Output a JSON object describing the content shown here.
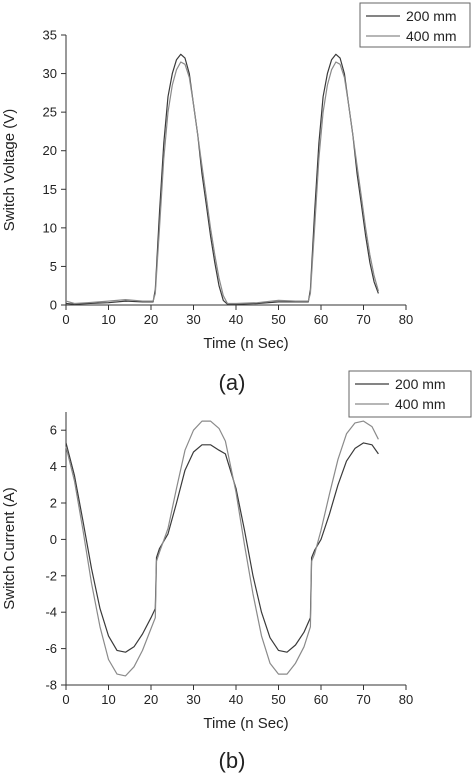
{
  "chart_data": [
    {
      "type": "line",
      "panel_label": "(a)",
      "xlabel": "Time (n Sec)",
      "ylabel": "Switch Voltage (V)",
      "xlim": [
        0,
        80
      ],
      "ylim": [
        0,
        35
      ],
      "xticks": [
        0,
        10,
        20,
        30,
        40,
        50,
        60,
        70,
        80
      ],
      "yticks": [
        0,
        5,
        10,
        15,
        20,
        25,
        30,
        35
      ],
      "legend_position": "top-right",
      "grid": false,
      "series": [
        {
          "name": "200 mm",
          "color": "#3a3a3a",
          "points": [
            [
              0,
              0.2
            ],
            [
              2,
              0.1
            ],
            [
              5,
              0.2
            ],
            [
              10,
              0.3
            ],
            [
              14,
              0.5
            ],
            [
              18,
              0.4
            ],
            [
              20.5,
              0.4
            ],
            [
              21,
              2
            ],
            [
              22,
              12
            ],
            [
              23,
              21
            ],
            [
              24,
              27
            ],
            [
              25,
              30
            ],
            [
              26,
              31.8
            ],
            [
              27,
              32.5
            ],
            [
              28,
              32
            ],
            [
              29,
              30
            ],
            [
              30,
              26
            ],
            [
              31,
              22
            ],
            [
              32,
              17
            ],
            [
              33,
              13
            ],
            [
              34,
              9
            ],
            [
              35,
              5.5
            ],
            [
              36,
              2.5
            ],
            [
              37,
              0.6
            ],
            [
              38,
              0.1
            ],
            [
              40,
              0.1
            ],
            [
              45,
              0.2
            ],
            [
              50,
              0.4
            ],
            [
              54,
              0.4
            ],
            [
              57,
              0.4
            ],
            [
              57.5,
              2
            ],
            [
              58.5,
              12
            ],
            [
              59.5,
              21
            ],
            [
              60.5,
              27
            ],
            [
              61.5,
              30
            ],
            [
              62.5,
              31.8
            ],
            [
              63.5,
              32.5
            ],
            [
              64.5,
              32
            ],
            [
              65.5,
              30
            ],
            [
              66.5,
              26
            ],
            [
              67.5,
              22
            ],
            [
              68.5,
              17
            ],
            [
              69.5,
              13
            ],
            [
              70.5,
              9
            ],
            [
              71.5,
              5.5
            ],
            [
              72.5,
              3
            ],
            [
              73.5,
              1.5
            ]
          ]
        },
        {
          "name": "400 mm",
          "color": "#8a8a8a",
          "points": [
            [
              0,
              0.5
            ],
            [
              2,
              0.2
            ],
            [
              5,
              0.3
            ],
            [
              10,
              0.5
            ],
            [
              14,
              0.7
            ],
            [
              18,
              0.5
            ],
            [
              20.5,
              0.5
            ],
            [
              21,
              1.5
            ],
            [
              22,
              10
            ],
            [
              23,
              19
            ],
            [
              24,
              25
            ],
            [
              25,
              28.5
            ],
            [
              26,
              30.5
            ],
            [
              27,
              31.5
            ],
            [
              28,
              31.2
            ],
            [
              29,
              29.5
            ],
            [
              30,
              26
            ],
            [
              31,
              22
            ],
            [
              32,
              18
            ],
            [
              33,
              14
            ],
            [
              34,
              10
            ],
            [
              35,
              6.5
            ],
            [
              36,
              3.5
            ],
            [
              37,
              1.2
            ],
            [
              38,
              0.2
            ],
            [
              40,
              0.2
            ],
            [
              45,
              0.3
            ],
            [
              50,
              0.6
            ],
            [
              54,
              0.5
            ],
            [
              57,
              0.5
            ],
            [
              57.5,
              1.5
            ],
            [
              58.5,
              10
            ],
            [
              59.5,
              19
            ],
            [
              60.5,
              25
            ],
            [
              61.5,
              28.5
            ],
            [
              62.5,
              30.5
            ],
            [
              63.5,
              31.5
            ],
            [
              64.5,
              31.2
            ],
            [
              65.5,
              29.5
            ],
            [
              66.5,
              26
            ],
            [
              67.5,
              22
            ],
            [
              68.5,
              18
            ],
            [
              69.5,
              14
            ],
            [
              70.5,
              10
            ],
            [
              71.5,
              6.5
            ],
            [
              72.5,
              3.8
            ],
            [
              73.5,
              1.8
            ]
          ]
        }
      ]
    },
    {
      "type": "line",
      "panel_label": "(b)",
      "xlabel": "Time (n Sec)",
      "ylabel": "Switch Current (A)",
      "xlim": [
        0,
        80
      ],
      "ylim": [
        -8,
        7
      ],
      "xticks": [
        0,
        10,
        20,
        30,
        40,
        50,
        60,
        70,
        80
      ],
      "yticks": [
        -8,
        -6,
        -4,
        -2,
        0,
        2,
        4,
        6
      ],
      "legend_position": "top-right",
      "grid": false,
      "series": [
        {
          "name": "200 mm",
          "color": "#3a3a3a",
          "points": [
            [
              0,
              5.3
            ],
            [
              2,
              3.5
            ],
            [
              4,
              1
            ],
            [
              6,
              -1.6
            ],
            [
              8,
              -3.8
            ],
            [
              10,
              -5.3
            ],
            [
              12,
              -6.1
            ],
            [
              14,
              -6.2
            ],
            [
              16,
              -5.9
            ],
            [
              18,
              -5.2
            ],
            [
              20,
              -4.3
            ],
            [
              21,
              -3.8
            ],
            [
              21.3,
              -1
            ],
            [
              22,
              -0.5
            ],
            [
              24,
              0.3
            ],
            [
              26,
              2
            ],
            [
              28,
              3.8
            ],
            [
              30,
              4.8
            ],
            [
              32,
              5.2
            ],
            [
              34,
              5.2
            ],
            [
              36,
              4.9
            ],
            [
              37.5,
              4.7
            ],
            [
              40,
              2.8
            ],
            [
              42,
              0.5
            ],
            [
              44,
              -2
            ],
            [
              46,
              -4
            ],
            [
              48,
              -5.4
            ],
            [
              50,
              -6.1
            ],
            [
              52,
              -6.2
            ],
            [
              54,
              -5.8
            ],
            [
              56,
              -5.1
            ],
            [
              57.5,
              -4.3
            ],
            [
              57.8,
              -1
            ],
            [
              58.5,
              -0.6
            ],
            [
              60,
              0
            ],
            [
              62,
              1.4
            ],
            [
              64,
              3
            ],
            [
              66,
              4.3
            ],
            [
              68,
              5
            ],
            [
              70,
              5.3
            ],
            [
              72,
              5.2
            ],
            [
              73.5,
              4.7
            ]
          ]
        },
        {
          "name": "400 mm",
          "color": "#8a8a8a",
          "points": [
            [
              0,
              5.1
            ],
            [
              2,
              3.2
            ],
            [
              4,
              0.5
            ],
            [
              6,
              -2.4
            ],
            [
              8,
              -4.8
            ],
            [
              10,
              -6.6
            ],
            [
              12,
              -7.4
            ],
            [
              14,
              -7.5
            ],
            [
              16,
              -7
            ],
            [
              18,
              -6.1
            ],
            [
              20,
              -4.9
            ],
            [
              21,
              -4.3
            ],
            [
              21.3,
              -1.2
            ],
            [
              22,
              -0.7
            ],
            [
              24,
              0.6
            ],
            [
              26,
              2.8
            ],
            [
              28,
              4.9
            ],
            [
              30,
              6
            ],
            [
              32,
              6.5
            ],
            [
              34,
              6.5
            ],
            [
              36,
              6.1
            ],
            [
              37.5,
              5.4
            ],
            [
              40,
              2.6
            ],
            [
              42,
              -0.3
            ],
            [
              44,
              -3
            ],
            [
              46,
              -5.3
            ],
            [
              48,
              -6.8
            ],
            [
              50,
              -7.4
            ],
            [
              52,
              -7.4
            ],
            [
              54,
              -6.8
            ],
            [
              56,
              -5.9
            ],
            [
              57.5,
              -4.8
            ],
            [
              57.8,
              -1.2
            ],
            [
              58.5,
              -0.8
            ],
            [
              60,
              0.5
            ],
            [
              62,
              2.5
            ],
            [
              64,
              4.4
            ],
            [
              66,
              5.8
            ],
            [
              68,
              6.4
            ],
            [
              70,
              6.5
            ],
            [
              72,
              6.2
            ],
            [
              73.5,
              5.5
            ]
          ]
        }
      ]
    }
  ]
}
